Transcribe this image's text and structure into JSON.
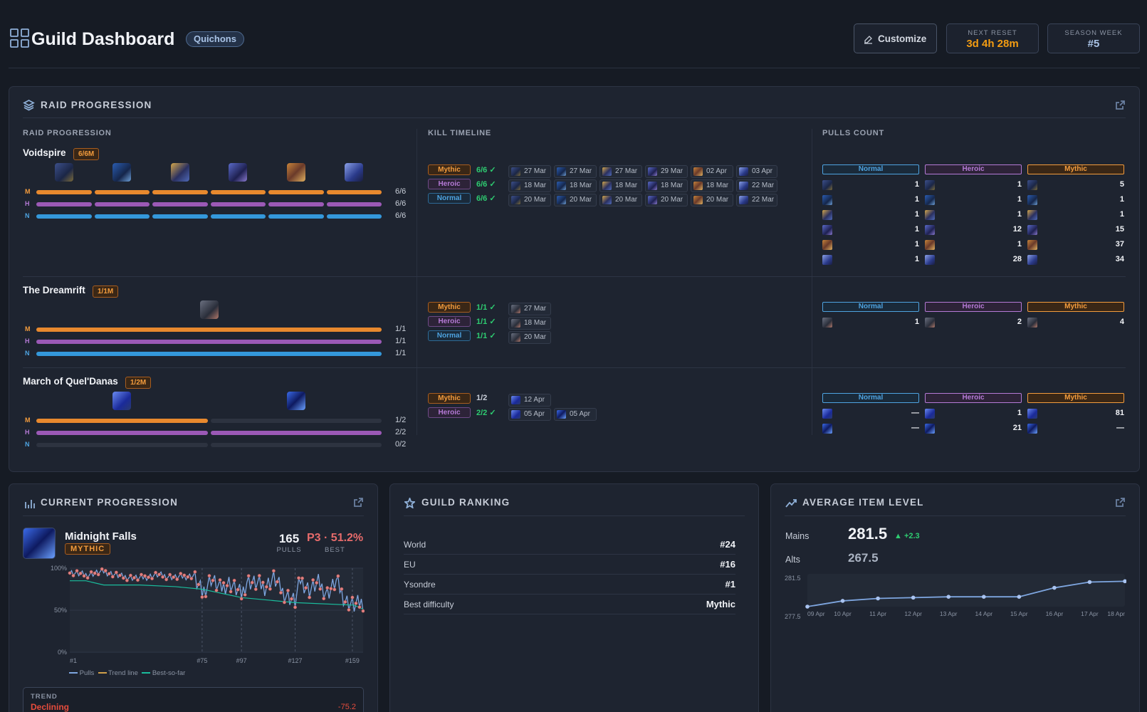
{
  "header": {
    "title": "Guild Dashboard",
    "guild": "Quichons",
    "customize": "Customize",
    "next_reset_label": "NEXT RESET",
    "next_reset": "3d 4h 28m",
    "season_week_label": "SEASON WEEK",
    "season_week": "#5"
  },
  "raid_progression": {
    "title": "RAID PROGRESSION",
    "col_raid": "RAID PROGRESSION",
    "col_timeline": "KILL TIMELINE",
    "col_pulls": "PULLS COUNT",
    "diff_letters": [
      "M",
      "H",
      "N"
    ],
    "headers": [
      "Normal",
      "Heroic",
      "Mythic"
    ],
    "raids": [
      {
        "name": "Voidspire",
        "badge": "6/6M",
        "counts": [
          "6/6",
          "6/6",
          "6/6"
        ],
        "timeline": [
          {
            "diff": "Mythic",
            "prog": "6/6 ✓",
            "dates": [
              "27 Mar",
              "27 Mar",
              "27 Mar",
              "29 Mar",
              "02 Apr",
              "03 Apr"
            ]
          },
          {
            "diff": "Heroic",
            "prog": "6/6 ✓",
            "dates": [
              "18 Mar",
              "18 Mar",
              "18 Mar",
              "18 Mar",
              "18 Mar",
              "22 Mar"
            ]
          },
          {
            "diff": "Normal",
            "prog": "6/6 ✓",
            "dates": [
              "20 Mar",
              "20 Mar",
              "20 Mar",
              "20 Mar",
              "20 Mar",
              "22 Mar"
            ]
          }
        ],
        "pulls": {
          "normal": [
            "1",
            "1",
            "1",
            "1",
            "1",
            "1"
          ],
          "heroic": [
            "1",
            "1",
            "1",
            "12",
            "1",
            "28"
          ],
          "mythic": [
            "5",
            "1",
            "1",
            "15",
            "37",
            "34"
          ]
        }
      },
      {
        "name": "The Dreamrift",
        "badge": "1/1M",
        "counts": [
          "1/1",
          "1/1",
          "1/1"
        ],
        "timeline": [
          {
            "diff": "Mythic",
            "prog": "1/1 ✓",
            "dates": [
              "27 Mar"
            ]
          },
          {
            "diff": "Heroic",
            "prog": "1/1 ✓",
            "dates": [
              "18 Mar"
            ]
          },
          {
            "diff": "Normal",
            "prog": "1/1 ✓",
            "dates": [
              "20 Mar"
            ]
          }
        ],
        "pulls": {
          "normal": [
            "1"
          ],
          "heroic": [
            "2"
          ],
          "mythic": [
            "4"
          ]
        }
      },
      {
        "name": "March of Quel'Danas",
        "badge": "1/2M",
        "counts": [
          "1/2",
          "2/2",
          "0/2"
        ],
        "timeline": [
          {
            "diff": "Mythic",
            "prog": "1/2",
            "dates": [
              "12 Apr"
            ]
          },
          {
            "diff": "Heroic",
            "prog": "2/2 ✓",
            "dates": [
              "05 Apr",
              "05 Apr"
            ]
          }
        ],
        "pulls": {
          "normal": [
            "—",
            "—"
          ],
          "heroic": [
            "1",
            "21"
          ],
          "mythic": [
            "81",
            "—"
          ]
        }
      }
    ]
  },
  "current_progression": {
    "title": "CURRENT PROGRESSION",
    "boss": "Midnight Falls",
    "difficulty": "MYTHIC",
    "pulls": "165",
    "pulls_label": "PULLS",
    "best": "P3 · 51.2%",
    "best_label": "BEST",
    "trend_label": "TREND",
    "trend": "Declining",
    "trend_value": "-75.2",
    "legend": [
      "Pulls",
      "Trend line",
      "Best-so-far"
    ],
    "y_ticks": [
      "100%",
      "50%",
      "0%"
    ],
    "x_ticks": [
      "#1",
      "#75",
      "#97",
      "#127",
      "#159"
    ]
  },
  "chart_data": [
    {
      "type": "line",
      "title": "",
      "x_ticks": [
        "#1",
        "#75",
        "#97",
        "#127",
        "#159"
      ],
      "ylim": [
        0,
        100
      ],
      "series": [
        {
          "name": "Pulls",
          "points": [
            [
              1,
              95
            ],
            [
              10,
              92
            ],
            [
              20,
              96
            ],
            [
              30,
              90
            ],
            [
              40,
              88
            ],
            [
              50,
              92
            ],
            [
              60,
              89
            ],
            [
              70,
              91
            ],
            [
              75,
              70
            ],
            [
              80,
              88
            ],
            [
              85,
              75
            ],
            [
              90,
              83
            ],
            [
              97,
              68
            ],
            [
              100,
              85
            ],
            [
              110,
              78
            ],
            [
              115,
              88
            ],
            [
              120,
              72
            ],
            [
              127,
              60
            ],
            [
              130,
              86
            ],
            [
              135,
              74
            ],
            [
              140,
              82
            ],
            [
              145,
              70
            ],
            [
              150,
              84
            ],
            [
              155,
              62
            ],
            [
              160,
              55
            ],
            [
              165,
              60
            ]
          ]
        },
        {
          "name": "Best-so-far",
          "points": [
            [
              1,
              85
            ],
            [
              10,
              85
            ],
            [
              20,
              80
            ],
            [
              40,
              80
            ],
            [
              60,
              78
            ],
            [
              75,
              75
            ],
            [
              97,
              65
            ],
            [
              127,
              59
            ],
            [
              160,
              56
            ],
            [
              165,
              51.2
            ]
          ]
        }
      ]
    },
    {
      "type": "line",
      "title": "",
      "x": [
        "09 Apr",
        "10 Apr",
        "11 Apr",
        "12 Apr",
        "13 Apr",
        "14 Apr",
        "15 Apr",
        "16 Apr",
        "17 Apr",
        "18 Apr"
      ],
      "y": [
        277.5,
        278.2,
        278.5,
        278.6,
        278.7,
        278.7,
        278.7,
        279.8,
        280.5,
        280.6
      ],
      "ylim": [
        277.5,
        281.5
      ],
      "y_ticks": [
        "281.5",
        "277.5"
      ]
    }
  ],
  "guild_ranking": {
    "title": "GUILD RANKING",
    "rows": [
      {
        "label": "World",
        "value": "#24"
      },
      {
        "label": "EU",
        "value": "#16"
      },
      {
        "label": "Ysondre",
        "value": "#1"
      },
      {
        "label": "Best difficulty",
        "value": "Mythic"
      }
    ]
  },
  "ilvl": {
    "title": "AVERAGE ITEM LEVEL",
    "mains_label": "Mains",
    "mains": "281.5",
    "delta": "▲ +2.3",
    "alts_label": "Alts",
    "alts": "267.5"
  },
  "colors": {
    "mythic": "#e8892e",
    "heroic": "#9b59b6",
    "normal": "#3498db",
    "accent": "#f39c12",
    "ok": "#2ecc71",
    "bad": "#e74c3c"
  }
}
